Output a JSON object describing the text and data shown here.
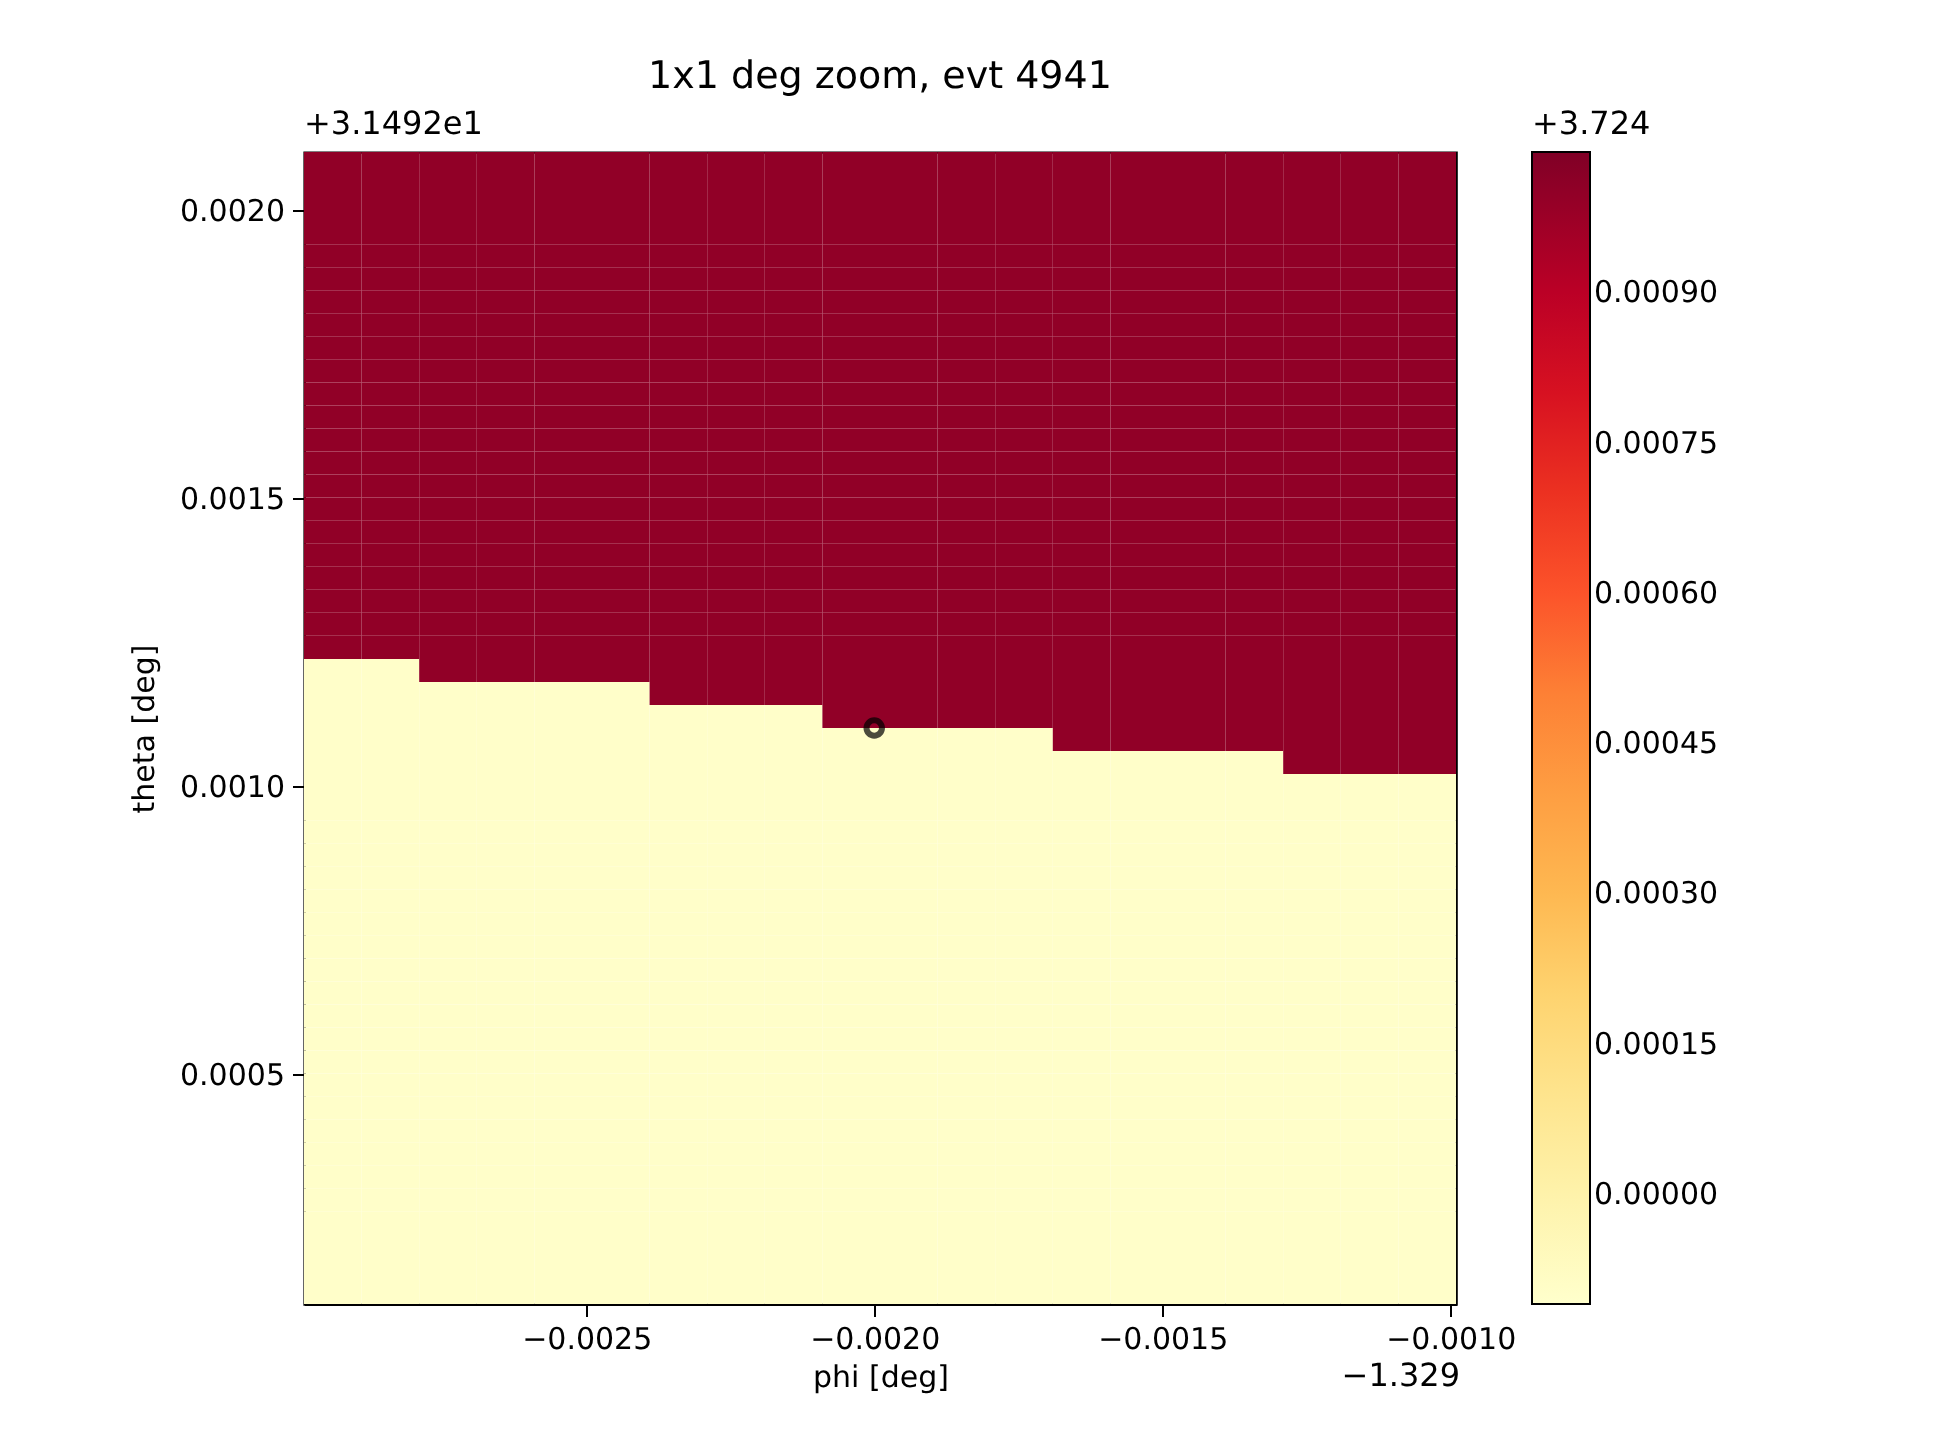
{
  "chart_data": {
    "type": "heatmap",
    "title": "1x1 deg zoom, evt 4941",
    "xlabel": "phi [deg]",
    "ylabel": "theta [deg]",
    "xlim": [
      -0.00299,
      -0.00099
    ],
    "ylim": [
      0.0001,
      0.0021
    ],
    "xticks": [
      {
        "value": -0.0025,
        "label": "−0.0025"
      },
      {
        "value": -0.002,
        "label": "−0.0020"
      },
      {
        "value": -0.0015,
        "label": "−0.0015"
      },
      {
        "value": -0.001,
        "label": "−0.0010"
      }
    ],
    "yticks": [
      {
        "value": 0.0005,
        "label": "0.0005"
      },
      {
        "value": 0.001,
        "label": "0.0010"
      },
      {
        "value": 0.0015,
        "label": "0.0015"
      },
      {
        "value": 0.002,
        "label": "0.0020"
      }
    ],
    "clim": [
      -0.00011,
      0.00104
    ],
    "cticks": [
      {
        "value": 0,
        "label": "0.00000"
      },
      {
        "value": 0.00015,
        "label": "0.00015"
      },
      {
        "value": 0.0003,
        "label": "0.00030"
      },
      {
        "value": 0.00045,
        "label": "0.00045"
      },
      {
        "value": 0.0006,
        "label": "0.00060"
      },
      {
        "value": 0.00075,
        "label": "0.00075"
      },
      {
        "value": 0.0009,
        "label": "0.00090"
      }
    ],
    "annotations": [
      "+3.1492e1",
      "−1.329",
      "+3.724"
    ],
    "cells": [
      [
        0.001,
        0.001,
        0.001,
        0.001,
        0.001,
        0.001,
        0.001,
        0.001,
        0.001,
        0.001,
        0.001,
        0.001,
        0.001,
        0.001,
        0.001,
        0.001,
        0.001,
        0.001,
        0.001,
        0.001
      ],
      [
        0.001,
        0.001,
        0.001,
        0.001,
        0.001,
        0.001,
        0.001,
        0.001,
        0.001,
        0.001,
        0.001,
        0.001,
        0.001,
        0.001,
        0.001,
        0.001,
        0.001,
        0.001,
        0.001,
        0.001
      ],
      [
        0.001,
        0.001,
        0.001,
        0.001,
        0.001,
        0.001,
        0.001,
        0.001,
        0.001,
        0.001,
        0.001,
        0.001,
        0.001,
        0.001,
        0.001,
        0.001,
        0.001,
        0.001,
        0.001,
        0.001
      ],
      [
        0.001,
        0.001,
        0.001,
        0.001,
        0.001,
        0.001,
        0.001,
        0.001,
        0.001,
        0.001,
        0.001,
        0.001,
        0.001,
        0.001,
        0.001,
        0.001,
        0.001,
        0.001,
        0.001,
        0.001
      ],
      [
        0.001,
        0.001,
        0.001,
        0.001,
        0.001,
        0.001,
        0.001,
        0.001,
        0.001,
        0.001,
        0.001,
        0.001,
        0.001,
        0.001,
        0.001,
        0.001,
        0.001,
        0.001,
        0.001,
        0.001
      ],
      [
        0.001,
        0.001,
        0.001,
        0.001,
        0.001,
        0.001,
        0.001,
        0.001,
        0.001,
        0.001,
        0.001,
        0.001,
        0.001,
        0.001,
        0.001,
        0.001,
        0.001,
        0.001,
        0.001,
        0.001
      ],
      [
        0.001,
        0.001,
        0.001,
        0.001,
        0.001,
        0.001,
        0.001,
        0.001,
        0.001,
        0.001,
        0.001,
        0.001,
        0.001,
        0.001,
        0.001,
        0.001,
        0.001,
        0.001,
        0.001,
        0.001
      ],
      [
        0.001,
        0.001,
        0.001,
        0.001,
        0.001,
        0.001,
        0.001,
        0.001,
        0.001,
        0.001,
        0.001,
        0.001,
        0.001,
        0.001,
        0.001,
        0.001,
        0.001,
        0.001,
        0.001,
        0.001
      ],
      [
        0.001,
        0.001,
        0.001,
        0.001,
        0.001,
        0.001,
        0.001,
        0.001,
        0.001,
        0.001,
        0.001,
        0.001,
        0.001,
        0.001,
        0.001,
        0.001,
        0.001,
        0.001,
        0.001,
        0.001
      ],
      [
        0.001,
        0.001,
        0.001,
        0.001,
        0.001,
        0.001,
        0.001,
        0.001,
        0.001,
        0.001,
        0.001,
        0.001,
        0.001,
        0.001,
        0.001,
        0.001,
        0.001,
        0.001,
        0.001,
        0.001
      ],
      [
        0.001,
        0.001,
        0.001,
        0.001,
        0.001,
        0.001,
        0.001,
        0.001,
        0.001,
        0.001,
        0.001,
        0.001,
        0.001,
        0.001,
        0.001,
        0.001,
        0.001,
        0.001,
        0.001,
        0.001
      ],
      [
        0.001,
        0.001,
        0.001,
        0.001,
        0.001,
        0.001,
        0.001,
        0.001,
        0.001,
        0.001,
        0.001,
        0.001,
        0.001,
        0.001,
        0.001,
        0.001,
        0.001,
        0.001,
        0.001,
        0.001
      ],
      [
        0.001,
        0.001,
        0.001,
        0.001,
        0.001,
        0.001,
        0.001,
        0.001,
        0.001,
        0.001,
        0.001,
        0.001,
        0.001,
        0.001,
        0.001,
        0.001,
        0.001,
        0.001,
        0.001,
        0.001
      ],
      [
        0.001,
        0.001,
        0.001,
        0.001,
        0.001,
        0.001,
        0.001,
        0.001,
        0.001,
        0.001,
        0.001,
        0.001,
        0.001,
        0.001,
        0.001,
        0.001,
        0.001,
        0.001,
        0.001,
        0.001
      ],
      [
        0.001,
        0.001,
        0.001,
        0.001,
        0.001,
        0.001,
        0.001,
        0.001,
        0.001,
        0.001,
        0.001,
        0.001,
        0.001,
        0.001,
        0.001,
        0.001,
        0.001,
        0.001,
        0.001,
        0.001
      ],
      [
        0.001,
        0.001,
        0.001,
        0.001,
        0.001,
        0.001,
        0.001,
        0.001,
        0.001,
        0.001,
        0.001,
        0.001,
        0.001,
        0.001,
        0.001,
        0.001,
        0.001,
        0.001,
        0.001,
        0.001
      ],
      [
        0.001,
        0.001,
        0.001,
        0.001,
        0.001,
        0.001,
        0.001,
        0.001,
        0.001,
        0.001,
        0.001,
        0.001,
        0.001,
        0.001,
        0.001,
        0.001,
        0.001,
        0.001,
        0.001,
        0.001
      ],
      [
        0.001,
        0.001,
        0.001,
        0.001,
        0.001,
        0.001,
        0.001,
        0.001,
        0.001,
        0.001,
        0.001,
        0.001,
        0.001,
        0.001,
        0.001,
        0.001,
        0.001,
        0.001,
        0.001,
        0.001
      ],
      [
        0.001,
        0.001,
        0.001,
        0.001,
        0.001,
        0.001,
        0.001,
        0.001,
        0.001,
        0.001,
        0.001,
        0.001,
        0.001,
        0.001,
        0.001,
        0.001,
        0.001,
        0.001,
        0.001,
        0.001
      ],
      [
        0.001,
        0.001,
        0.001,
        0.001,
        0.001,
        0.001,
        0.001,
        0.001,
        0.001,
        0.001,
        0.001,
        0.001,
        0.001,
        0.001,
        0.001,
        0.001,
        0.001,
        0.001,
        0.001,
        0.001
      ],
      [
        0.001,
        0.001,
        0.001,
        0.001,
        0.001,
        0.001,
        0.001,
        0.001,
        0.001,
        0.001,
        0.001,
        0.001,
        0.001,
        0.001,
        0.001,
        0.001,
        0.001,
        0.001,
        0.001,
        0.001
      ],
      [
        0.001,
        0.001,
        0.001,
        0.001,
        0.001,
        0.001,
        0.001,
        0.001,
        0.001,
        0.001,
        0.001,
        0.001,
        0.001,
        0.001,
        0.001,
        0.001,
        0.001,
        0.001,
        0.001,
        0.001
      ],
      [
        -0.0001,
        -0.0001,
        0.001,
        0.001,
        0.001,
        0.001,
        0.001,
        0.001,
        0.001,
        0.001,
        0.001,
        0.001,
        0.001,
        0.001,
        0.001,
        0.001,
        0.001,
        0.001,
        0.001,
        0.001
      ],
      [
        -0.0001,
        -0.0001,
        -0.0001,
        -0.0001,
        -0.0001,
        -0.0001,
        0.001,
        0.001,
        0.001,
        0.001,
        0.001,
        0.001,
        0.001,
        0.001,
        0.001,
        0.001,
        0.001,
        0.001,
        0.001,
        0.001
      ],
      [
        -0.0001,
        -0.0001,
        -0.0001,
        -0.0001,
        -0.0001,
        -0.0001,
        -0.0001,
        -0.0001,
        -0.0001,
        0.001,
        0.001,
        0.001,
        0.001,
        0.001,
        0.001,
        0.001,
        0.001,
        0.001,
        0.001,
        0.001
      ],
      [
        -0.0001,
        -0.0001,
        -0.0001,
        -0.0001,
        -0.0001,
        -0.0001,
        -0.0001,
        -0.0001,
        -0.0001,
        -0.0001,
        -0.0001,
        -0.0001,
        -0.0001,
        0.001,
        0.001,
        0.001,
        0.001,
        0.001,
        0.001,
        0.001
      ],
      [
        -0.0001,
        -0.0001,
        -0.0001,
        -0.0001,
        -0.0001,
        -0.0001,
        -0.0001,
        -0.0001,
        -0.0001,
        -0.0001,
        -0.0001,
        -0.0001,
        -0.0001,
        -0.0001,
        -0.0001,
        -0.0001,
        -0.0001,
        0.001,
        0.001,
        0.001
      ],
      [
        -0.0001,
        -0.0001,
        -0.0001,
        -0.0001,
        -0.0001,
        -0.0001,
        -0.0001,
        -0.0001,
        -0.0001,
        -0.0001,
        -0.0001,
        -0.0001,
        -0.0001,
        -0.0001,
        -0.0001,
        -0.0001,
        -0.0001,
        -0.0001,
        -0.0001,
        -0.0001
      ],
      [
        -0.0001,
        -0.0001,
        -0.0001,
        -0.0001,
        -0.0001,
        -0.0001,
        -0.0001,
        -0.0001,
        -0.0001,
        -0.0001,
        -0.0001,
        -0.0001,
        -0.0001,
        -0.0001,
        -0.0001,
        -0.0001,
        -0.0001,
        -0.0001,
        -0.0001,
        -0.0001
      ],
      [
        -0.0001,
        -0.0001,
        -0.0001,
        -0.0001,
        -0.0001,
        -0.0001,
        -0.0001,
        -0.0001,
        -0.0001,
        -0.0001,
        -0.0001,
        -0.0001,
        -0.0001,
        -0.0001,
        -0.0001,
        -0.0001,
        -0.0001,
        -0.0001,
        -0.0001,
        -0.0001
      ],
      [
        -0.0001,
        -0.0001,
        -0.0001,
        -0.0001,
        -0.0001,
        -0.0001,
        -0.0001,
        -0.0001,
        -0.0001,
        -0.0001,
        -0.0001,
        -0.0001,
        -0.0001,
        -0.0001,
        -0.0001,
        -0.0001,
        -0.0001,
        -0.0001,
        -0.0001,
        -0.0001
      ],
      [
        -0.0001,
        -0.0001,
        -0.0001,
        -0.0001,
        -0.0001,
        -0.0001,
        -0.0001,
        -0.0001,
        -0.0001,
        -0.0001,
        -0.0001,
        -0.0001,
        -0.0001,
        -0.0001,
        -0.0001,
        -0.0001,
        -0.0001,
        -0.0001,
        -0.0001,
        -0.0001
      ],
      [
        -0.0001,
        -0.0001,
        -0.0001,
        -0.0001,
        -0.0001,
        -0.0001,
        -0.0001,
        -0.0001,
        -0.0001,
        -0.0001,
        -0.0001,
        -0.0001,
        -0.0001,
        -0.0001,
        -0.0001,
        -0.0001,
        -0.0001,
        -0.0001,
        -0.0001,
        -0.0001
      ],
      [
        -0.0001,
        -0.0001,
        -0.0001,
        -0.0001,
        -0.0001,
        -0.0001,
        -0.0001,
        -0.0001,
        -0.0001,
        -0.0001,
        -0.0001,
        -0.0001,
        -0.0001,
        -0.0001,
        -0.0001,
        -0.0001,
        -0.0001,
        -0.0001,
        -0.0001,
        -0.0001
      ],
      [
        -0.0001,
        -0.0001,
        -0.0001,
        -0.0001,
        -0.0001,
        -0.0001,
        -0.0001,
        -0.0001,
        -0.0001,
        -0.0001,
        -0.0001,
        -0.0001,
        -0.0001,
        -0.0001,
        -0.0001,
        -0.0001,
        -0.0001,
        -0.0001,
        -0.0001,
        -0.0001
      ],
      [
        -0.0001,
        -0.0001,
        -0.0001,
        -0.0001,
        -0.0001,
        -0.0001,
        -0.0001,
        -0.0001,
        -0.0001,
        -0.0001,
        -0.0001,
        -0.0001,
        -0.0001,
        -0.0001,
        -0.0001,
        -0.0001,
        -0.0001,
        -0.0001,
        -0.0001,
        -0.0001
      ],
      [
        -0.0001,
        -0.0001,
        -0.0001,
        -0.0001,
        -0.0001,
        -0.0001,
        -0.0001,
        -0.0001,
        -0.0001,
        -0.0001,
        -0.0001,
        -0.0001,
        -0.0001,
        -0.0001,
        -0.0001,
        -0.0001,
        -0.0001,
        -0.0001,
        -0.0001,
        -0.0001
      ],
      [
        -0.0001,
        -0.0001,
        -0.0001,
        -0.0001,
        -0.0001,
        -0.0001,
        -0.0001,
        -0.0001,
        -0.0001,
        -0.0001,
        -0.0001,
        -0.0001,
        -0.0001,
        -0.0001,
        -0.0001,
        -0.0001,
        -0.0001,
        -0.0001,
        -0.0001,
        -0.0001
      ],
      [
        -0.0001,
        -0.0001,
        -0.0001,
        -0.0001,
        -0.0001,
        -0.0001,
        -0.0001,
        -0.0001,
        -0.0001,
        -0.0001,
        -0.0001,
        -0.0001,
        -0.0001,
        -0.0001,
        -0.0001,
        -0.0001,
        -0.0001,
        -0.0001,
        -0.0001,
        -0.0001
      ],
      [
        -0.0001,
        -0.0001,
        -0.0001,
        -0.0001,
        -0.0001,
        -0.0001,
        -0.0001,
        -0.0001,
        -0.0001,
        -0.0001,
        -0.0001,
        -0.0001,
        -0.0001,
        -0.0001,
        -0.0001,
        -0.0001,
        -0.0001,
        -0.0001,
        -0.0001,
        -0.0001
      ],
      [
        -0.0001,
        -0.0001,
        -0.0001,
        -0.0001,
        -0.0001,
        -0.0001,
        -0.0001,
        -0.0001,
        -0.0001,
        -0.0001,
        -0.0001,
        -0.0001,
        -0.0001,
        -0.0001,
        -0.0001,
        -0.0001,
        -0.0001,
        -0.0001,
        -0.0001,
        -0.0001
      ],
      [
        -0.0001,
        -0.0001,
        -0.0001,
        -0.0001,
        -0.0001,
        -0.0001,
        -0.0001,
        -0.0001,
        -0.0001,
        -0.0001,
        -0.0001,
        -0.0001,
        -0.0001,
        -0.0001,
        -0.0001,
        -0.0001,
        -0.0001,
        -0.0001,
        -0.0001,
        -0.0001
      ],
      [
        -0.0001,
        -0.0001,
        -0.0001,
        -0.0001,
        -0.0001,
        -0.0001,
        -0.0001,
        -0.0001,
        -0.0001,
        -0.0001,
        -0.0001,
        -0.0001,
        -0.0001,
        -0.0001,
        -0.0001,
        -0.0001,
        -0.0001,
        -0.0001,
        -0.0001,
        -0.0001
      ],
      [
        -0.0001,
        -0.0001,
        -0.0001,
        -0.0001,
        -0.0001,
        -0.0001,
        -0.0001,
        -0.0001,
        -0.0001,
        -0.0001,
        -0.0001,
        -0.0001,
        -0.0001,
        -0.0001,
        -0.0001,
        -0.0001,
        -0.0001,
        -0.0001,
        -0.0001,
        -0.0001
      ],
      [
        -0.0001,
        -0.0001,
        -0.0001,
        -0.0001,
        -0.0001,
        -0.0001,
        -0.0001,
        -0.0001,
        -0.0001,
        -0.0001,
        -0.0001,
        -0.0001,
        -0.0001,
        -0.0001,
        -0.0001,
        -0.0001,
        -0.0001,
        -0.0001,
        -0.0001,
        -0.0001
      ],
      [
        -0.0001,
        -0.0001,
        -0.0001,
        -0.0001,
        -0.0001,
        -0.0001,
        -0.0001,
        -0.0001,
        -0.0001,
        -0.0001,
        -0.0001,
        -0.0001,
        -0.0001,
        -0.0001,
        -0.0001,
        -0.0001,
        -0.0001,
        -0.0001,
        -0.0001,
        -0.0001
      ],
      [
        -0.0001,
        -0.0001,
        -0.0001,
        -0.0001,
        -0.0001,
        -0.0001,
        -0.0001,
        -0.0001,
        -0.0001,
        -0.0001,
        -0.0001,
        -0.0001,
        -0.0001,
        -0.0001,
        -0.0001,
        -0.0001,
        -0.0001,
        -0.0001,
        -0.0001,
        -0.0001
      ],
      [
        -0.0001,
        -0.0001,
        -0.0001,
        -0.0001,
        -0.0001,
        -0.0001,
        -0.0001,
        -0.0001,
        -0.0001,
        -0.0001,
        -0.0001,
        -0.0001,
        -0.0001,
        -0.0001,
        -0.0001,
        -0.0001,
        -0.0001,
        -0.0001,
        -0.0001,
        -0.0001
      ],
      [
        -0.0001,
        -0.0001,
        -0.0001,
        -0.0001,
        -0.0001,
        -0.0001,
        -0.0001,
        -0.0001,
        -0.0001,
        -0.0001,
        -0.0001,
        -0.0001,
        -0.0001,
        -0.0001,
        -0.0001,
        -0.0001,
        -0.0001,
        -0.0001,
        -0.0001,
        -0.0001
      ],
      [
        -0.0001,
        -0.0001,
        -0.0001,
        -0.0001,
        -0.0001,
        -0.0001,
        -0.0001,
        -0.0001,
        -0.0001,
        -0.0001,
        -0.0001,
        -0.0001,
        -0.0001,
        -0.0001,
        -0.0001,
        -0.0001,
        -0.0001,
        -0.0001,
        -0.0001,
        -0.0001
      ]
    ],
    "series": [
      {
        "type": "scatter",
        "x": [
          -0.002
        ],
        "values": [
          0.0011
        ],
        "color": "#000000"
      }
    ],
    "marker": "circle"
  }
}
